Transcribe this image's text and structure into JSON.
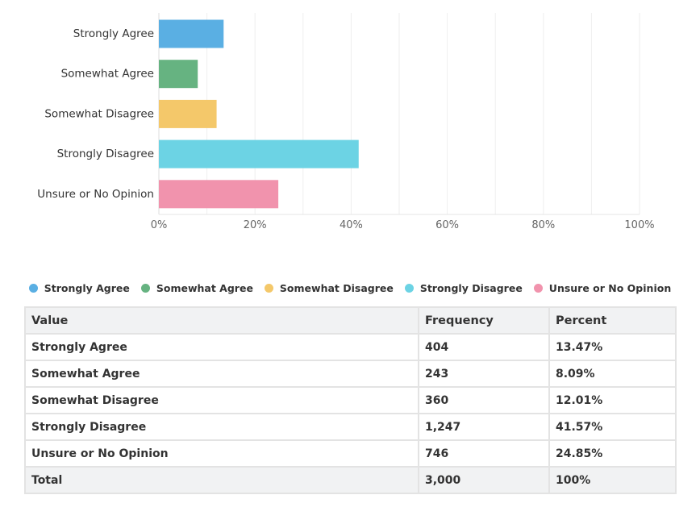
{
  "chart_data": {
    "type": "bar",
    "orientation": "horizontal",
    "categories": [
      "Strongly Agree",
      "Somewhat Agree",
      "Somewhat Disagree",
      "Strongly Disagree",
      "Unsure or No Opinion"
    ],
    "values": [
      13.47,
      8.09,
      12.01,
      41.57,
      24.85
    ],
    "colors": [
      "#5aafe3",
      "#66b381",
      "#f4c86a",
      "#6cd3e4",
      "#f193ad"
    ],
    "xlim": [
      0,
      100
    ],
    "x_ticks": [
      "0%",
      "20%",
      "40%",
      "60%",
      "80%",
      "100%"
    ],
    "x_tick_values": [
      0,
      20,
      40,
      60,
      80,
      100
    ],
    "grid": true,
    "legend_position": "bottom"
  },
  "legend": {
    "items": [
      {
        "label": "Strongly Agree",
        "color": "#5aafe3"
      },
      {
        "label": "Somewhat Agree",
        "color": "#66b381"
      },
      {
        "label": "Somewhat Disagree",
        "color": "#f4c86a"
      },
      {
        "label": "Strongly Disagree",
        "color": "#6cd3e4"
      },
      {
        "label": "Unsure or No Opinion",
        "color": "#f193ad"
      }
    ]
  },
  "table": {
    "headers": {
      "value": "Value",
      "frequency": "Frequency",
      "percent": "Percent"
    },
    "rows": [
      {
        "value": "Strongly Agree",
        "frequency": "404",
        "percent": "13.47%"
      },
      {
        "value": "Somewhat Agree",
        "frequency": "243",
        "percent": "8.09%"
      },
      {
        "value": "Somewhat Disagree",
        "frequency": "360",
        "percent": "12.01%"
      },
      {
        "value": "Strongly Disagree",
        "frequency": "1,247",
        "percent": "41.57%"
      },
      {
        "value": "Unsure or No Opinion",
        "frequency": "746",
        "percent": "24.85%"
      }
    ],
    "total": {
      "value": "Total",
      "frequency": "3,000",
      "percent": "100%"
    }
  }
}
